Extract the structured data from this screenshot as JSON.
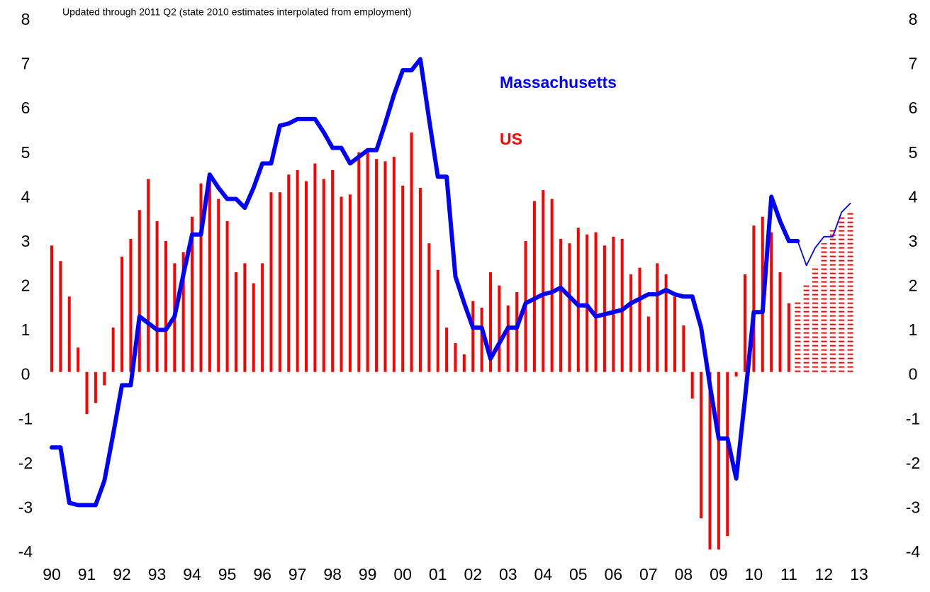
{
  "chart_data": {
    "type": "bar",
    "subtitle": "Updated through 2011 Q2 (state 2010 estimates interpolated from employment)",
    "categories": [
      "90",
      null,
      null,
      null,
      "91",
      null,
      null,
      null,
      "92",
      null,
      null,
      null,
      "93",
      null,
      null,
      null,
      "94",
      null,
      null,
      null,
      "95",
      null,
      null,
      null,
      "96",
      null,
      null,
      null,
      "97",
      null,
      null,
      null,
      "98",
      null,
      null,
      null,
      "99",
      null,
      null,
      null,
      "00",
      null,
      null,
      null,
      "01",
      null,
      null,
      null,
      "02",
      null,
      null,
      null,
      "03",
      null,
      null,
      null,
      "04",
      null,
      null,
      null,
      "05",
      null,
      null,
      null,
      "06",
      null,
      null,
      null,
      "07",
      null,
      null,
      null,
      "08",
      null,
      null,
      null,
      "09",
      null,
      null,
      null,
      "10",
      null,
      null,
      null,
      "11",
      null,
      null,
      null,
      "12",
      null,
      null,
      null,
      "13"
    ],
    "series": [
      {
        "name": "US",
        "type": "bar",
        "style": "solid",
        "color": "#ff0000",
        "values": [
          2.85,
          2.5,
          1.7,
          0.55,
          -0.95,
          -0.7,
          -0.3,
          1.0,
          2.6,
          3.0,
          3.65,
          4.35,
          3.4,
          2.95,
          2.45,
          2.7,
          3.5,
          4.25,
          4.3,
          3.9,
          3.4,
          2.25,
          2.45,
          2.0,
          2.45,
          4.05,
          4.05,
          4.45,
          4.55,
          4.3,
          4.7,
          4.35,
          4.55,
          3.95,
          4.0,
          4.95,
          5.0,
          4.8,
          4.75,
          4.85,
          4.2,
          5.4,
          4.15,
          2.9,
          2.3,
          1.0,
          0.65,
          0.4,
          1.6,
          1.45,
          2.25,
          1.95,
          1.5,
          1.8,
          2.95,
          3.85,
          4.1,
          3.9,
          3.0,
          2.9,
          3.25,
          3.1,
          3.15,
          2.85,
          3.05,
          3.0,
          2.2,
          2.35,
          1.25,
          2.45,
          2.2,
          1.7,
          1.05,
          -0.6,
          -3.3,
          -4.0,
          -4.0,
          -3.7,
          -0.1,
          2.2,
          3.3,
          3.5,
          3.15,
          2.25,
          1.55,
          null,
          null,
          null,
          null,
          null,
          null,
          null,
          null
        ]
      },
      {
        "name": "US",
        "type": "bar",
        "style": "forecast",
        "color": "#ff0000",
        "values": [
          null,
          null,
          null,
          null,
          null,
          null,
          null,
          null,
          null,
          null,
          null,
          null,
          null,
          null,
          null,
          null,
          null,
          null,
          null,
          null,
          null,
          null,
          null,
          null,
          null,
          null,
          null,
          null,
          null,
          null,
          null,
          null,
          null,
          null,
          null,
          null,
          null,
          null,
          null,
          null,
          null,
          null,
          null,
          null,
          null,
          null,
          null,
          null,
          null,
          null,
          null,
          null,
          null,
          null,
          null,
          null,
          null,
          null,
          null,
          null,
          null,
          null,
          null,
          null,
          null,
          null,
          null,
          null,
          null,
          null,
          null,
          null,
          null,
          null,
          null,
          null,
          null,
          null,
          null,
          null,
          null,
          null,
          null,
          null,
          null,
          1.6,
          2.0,
          2.4,
          2.9,
          3.2,
          3.5,
          3.6,
          null
        ]
      },
      {
        "name": "Massachusetts",
        "type": "line",
        "style": "solid",
        "color": "#0000ff",
        "values": [
          -1.7,
          -1.7,
          -2.95,
          -3.0,
          -3.0,
          -3.0,
          -2.45,
          -1.4,
          -0.3,
          -0.3,
          1.25,
          1.1,
          0.95,
          0.95,
          1.25,
          2.2,
          3.1,
          3.1,
          4.45,
          4.15,
          3.9,
          3.9,
          3.7,
          4.15,
          4.7,
          4.7,
          5.55,
          5.6,
          5.7,
          5.7,
          5.7,
          5.4,
          5.05,
          5.05,
          4.7,
          4.85,
          5.0,
          5.0,
          5.6,
          6.25,
          6.8,
          6.8,
          7.05,
          5.7,
          4.4,
          4.4,
          2.15,
          1.55,
          1.0,
          1.0,
          0.3,
          0.65,
          1.0,
          1.0,
          1.55,
          1.65,
          1.75,
          1.8,
          1.9,
          1.7,
          1.5,
          1.5,
          1.25,
          1.3,
          1.35,
          1.4,
          1.55,
          1.65,
          1.75,
          1.75,
          1.85,
          1.75,
          1.7,
          1.7,
          1.0,
          -0.3,
          -1.5,
          -1.5,
          -2.4,
          -0.6,
          1.35,
          1.35,
          3.95,
          3.4,
          2.95,
          2.95,
          null,
          null,
          null,
          null,
          null,
          null,
          null
        ]
      },
      {
        "name": "Massachusetts",
        "type": "line",
        "style": "forecast",
        "color": "#0000ff",
        "values": [
          null,
          null,
          null,
          null,
          null,
          null,
          null,
          null,
          null,
          null,
          null,
          null,
          null,
          null,
          null,
          null,
          null,
          null,
          null,
          null,
          null,
          null,
          null,
          null,
          null,
          null,
          null,
          null,
          null,
          null,
          null,
          null,
          null,
          null,
          null,
          null,
          null,
          null,
          null,
          null,
          null,
          null,
          null,
          null,
          null,
          null,
          null,
          null,
          null,
          null,
          null,
          null,
          null,
          null,
          null,
          null,
          null,
          null,
          null,
          null,
          null,
          null,
          null,
          null,
          null,
          null,
          null,
          null,
          null,
          null,
          null,
          null,
          null,
          null,
          null,
          null,
          null,
          null,
          null,
          null,
          null,
          null,
          null,
          null,
          null,
          2.95,
          2.4,
          2.8,
          3.05,
          3.05,
          3.6,
          3.8,
          null
        ]
      }
    ],
    "ylim": [
      -4,
      8
    ],
    "yticks": [
      -4,
      -3,
      -2,
      -1,
      0,
      1,
      2,
      3,
      4,
      5,
      6,
      7,
      8
    ],
    "y2lim": [
      -4,
      8
    ],
    "y2ticks": [
      -4,
      -3,
      -2,
      -1,
      0,
      1,
      2,
      3,
      4,
      5,
      6,
      7,
      8
    ],
    "grid": false
  }
}
